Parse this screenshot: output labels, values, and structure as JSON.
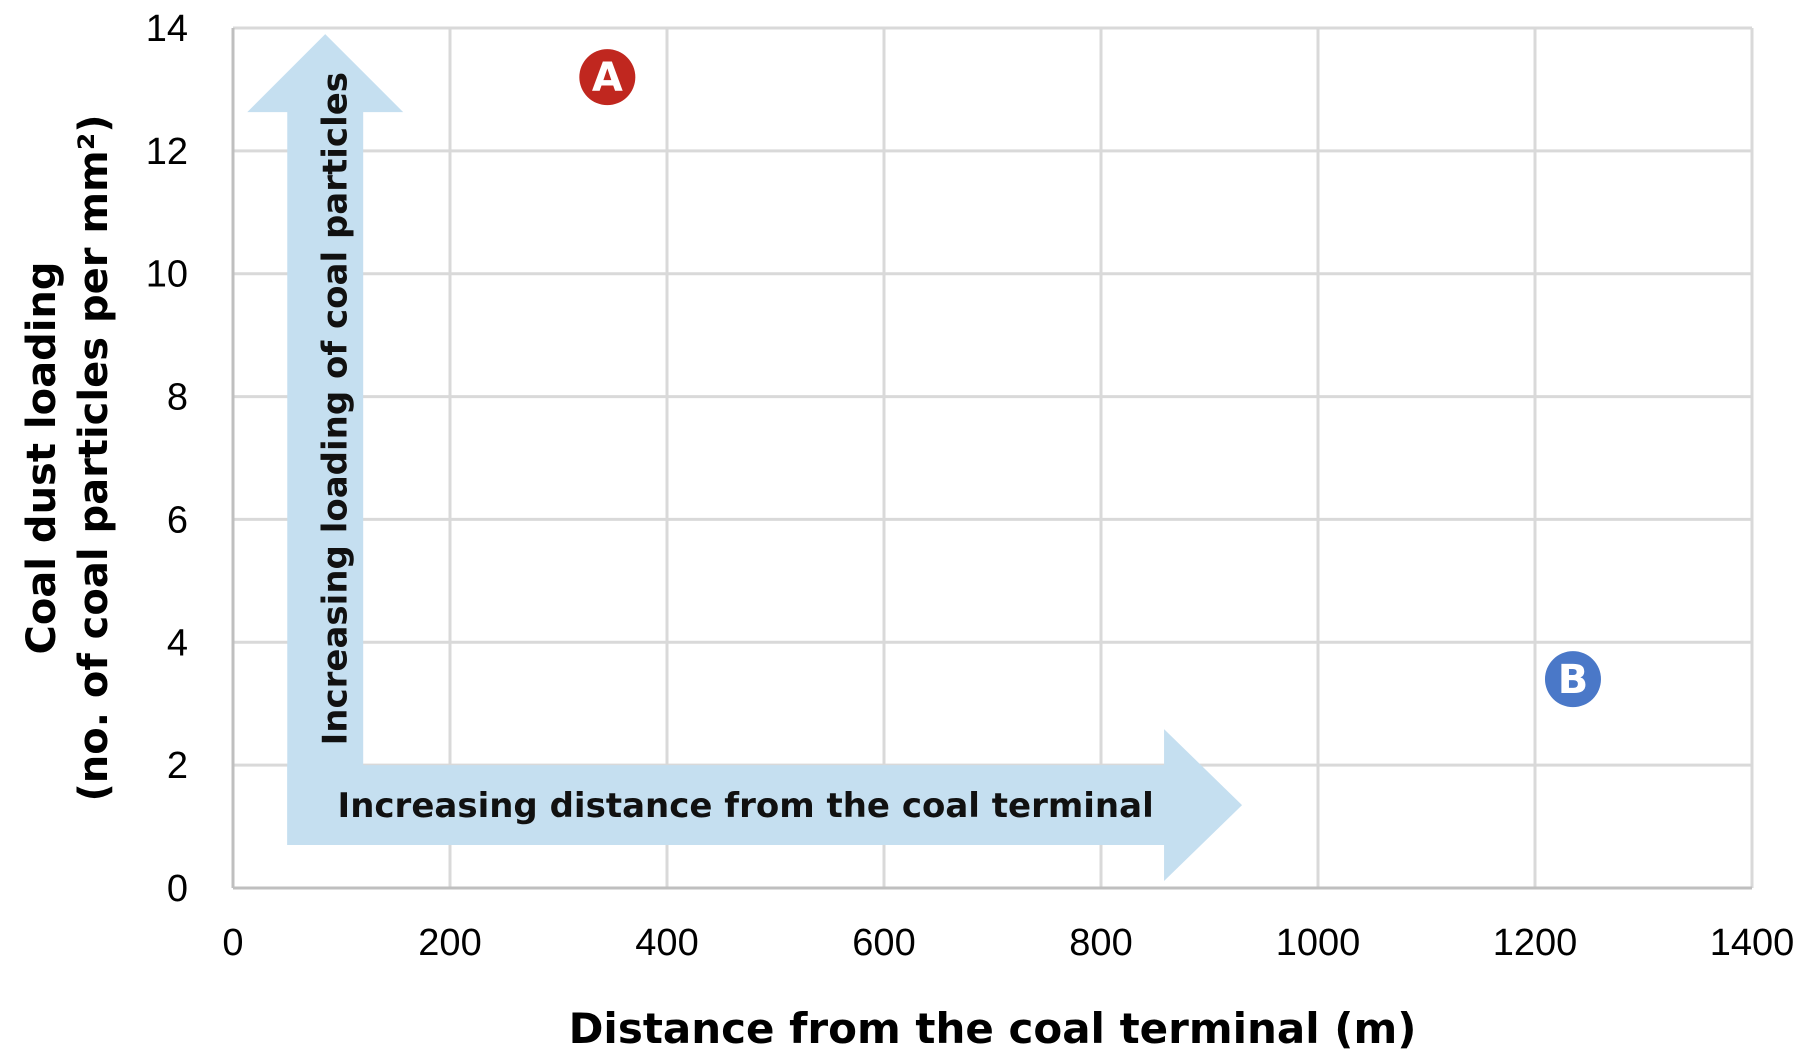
{
  "chart_data": {
    "type": "scatter",
    "xlabel": "Distance from the coal terminal (m)",
    "ylabel_line1": "Coal dust loading",
    "ylabel_line2": "(no. of coal particles per mm²)",
    "xlim": [
      0,
      1400
    ],
    "ylim": [
      0,
      14
    ],
    "xticks": [
      0,
      200,
      400,
      600,
      800,
      1000,
      1200,
      1400
    ],
    "yticks": [
      0,
      2,
      4,
      6,
      8,
      10,
      12,
      14
    ],
    "grid": true,
    "points": [
      {
        "label": "A",
        "x": 345,
        "y": 13.2,
        "color": "#c0271f"
      },
      {
        "label": "B",
        "x": 1235,
        "y": 3.4,
        "color": "#4a78c8"
      }
    ],
    "arrows": {
      "vertical": {
        "label": "Increasing loading of coal particles",
        "x_range": [
          50,
          120
        ],
        "y_range": [
          0.7,
          13.9
        ]
      },
      "horizontal": {
        "label": "Increasing distance from the coal terminal",
        "x_range": [
          50,
          930
        ],
        "y_range": [
          0.7,
          2.0
        ]
      },
      "color": "#c5dff0"
    },
    "colors": {
      "grid": "#d9d9d9",
      "axis": "#bfbfbf"
    }
  }
}
